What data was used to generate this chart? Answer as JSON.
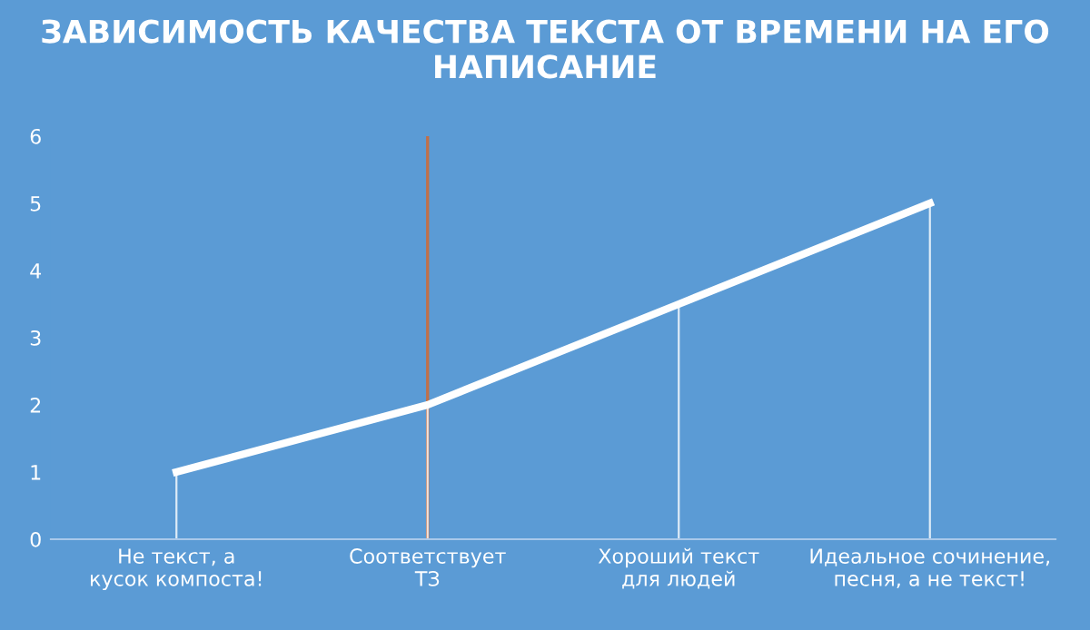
{
  "chart_data": {
    "type": "line",
    "title": "ЗАВИСИМОСТЬ КАЧЕСТВА ТЕКСТА ОТ ВРЕМЕНИ НА ЕГО НАПИСАНИЕ",
    "categories": [
      "Не текст, а кусок компоста!",
      "Соответствует ТЗ",
      "Хороший текст для людей",
      "Идеальное сочинение, песня, а не текст!"
    ],
    "series": [
      {
        "color": "#ffffff",
        "values": [
          1,
          2,
          3.5,
          5
        ],
        "errors": [
          [
            0,
            1
          ],
          [
            0,
            2
          ],
          [
            0,
            3.5
          ],
          [
            0,
            5
          ]
        ]
      }
    ],
    "ylim": [
      0,
      6
    ],
    "yticks": [
      0,
      1,
      2,
      3,
      4,
      5,
      6
    ],
    "ref_lines": [
      {
        "axis": "x",
        "value": "Соответствует ТЗ",
        "label": null,
        "color": "#c0704a"
      }
    ],
    "grid": false,
    "legend": false,
    "marker": "none",
    "line_style": "solid"
  }
}
